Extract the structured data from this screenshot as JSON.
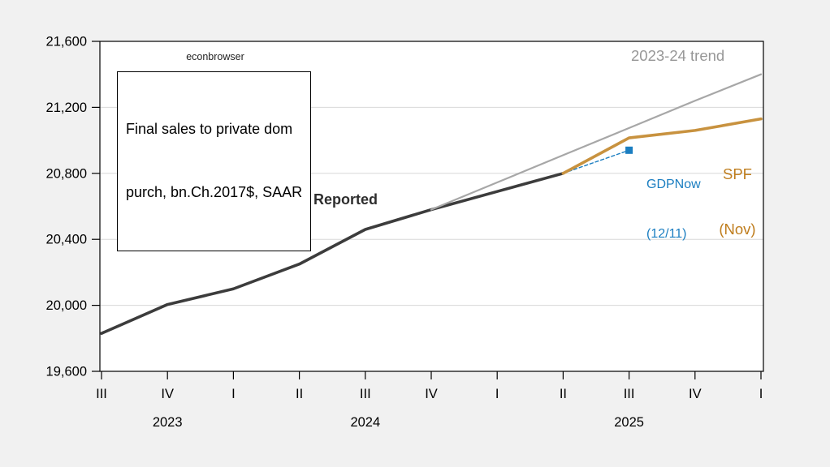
{
  "watermark": "econbrowser",
  "annotation_box": {
    "line1": "Final sales to private dom",
    "line2": "purch, bn.Ch.2017$, SAAR"
  },
  "series_labels": {
    "reported": "Reported",
    "trend": "2023-24 trend",
    "spf": [
      "SPF",
      "(Nov)"
    ],
    "gdpnow": [
      "GDPNow",
      "(12/11)"
    ]
  },
  "colors": {
    "background": "#f1f1f1",
    "plot_background": "#ffffff",
    "axis": "#000000",
    "gridline": "#d8d8d8",
    "reported": "#3c3c3c",
    "trend": "#a7a7a7",
    "spf": "#c8923f",
    "gdpnow": "#1b7ec1"
  },
  "chart_data": {
    "type": "line",
    "title": "Final sales to private dom purch, bn.Ch.2017$, SAAR",
    "watermark": "econbrowser",
    "ylim": [
      19600,
      21600
    ],
    "y_ticks": [
      19600,
      20000,
      20400,
      20800,
      21200,
      21600
    ],
    "grid": true,
    "x_quarters": [
      "2023Q3",
      "2023Q4",
      "2024Q1",
      "2024Q2",
      "2024Q3",
      "2024Q4",
      "2025Q1",
      "2025Q2",
      "2025Q3",
      "2025Q4",
      "2026Q1"
    ],
    "x_tick_labels": [
      "III",
      "IV",
      "I",
      "II",
      "III",
      "IV",
      "I",
      "II",
      "III",
      "IV",
      "I"
    ],
    "year_labels": [
      {
        "text": "2023",
        "at_tick": 1
      },
      {
        "text": "2024",
        "at_tick": 4
      },
      {
        "text": "2025",
        "at_tick": 8
      }
    ],
    "series": [
      {
        "name": "Reported",
        "color": "#3c3c3c",
        "width": 3.6,
        "dash": null,
        "start": 0,
        "values": [
          19830,
          20005,
          20100,
          20250,
          20460,
          20580,
          20690,
          20800
        ]
      },
      {
        "name": "2023-24 trend",
        "color": "#a7a7a7",
        "width": 2.2,
        "dash": null,
        "start": 5,
        "values": [
          20580,
          20745,
          20910,
          21075,
          21240,
          21400
        ]
      },
      {
        "name": "GDPNow (12/11)",
        "color": "#1b7ec1",
        "width": 1.4,
        "dash": "4 3",
        "start": 7,
        "values": [
          20800,
          20940
        ],
        "marker": "square-last",
        "marker_size": 9
      },
      {
        "name": "SPF (Nov)",
        "color": "#c8923f",
        "width": 3.6,
        "dash": null,
        "start": 7,
        "values": [
          20800,
          21015,
          21060,
          21130
        ]
      }
    ]
  }
}
